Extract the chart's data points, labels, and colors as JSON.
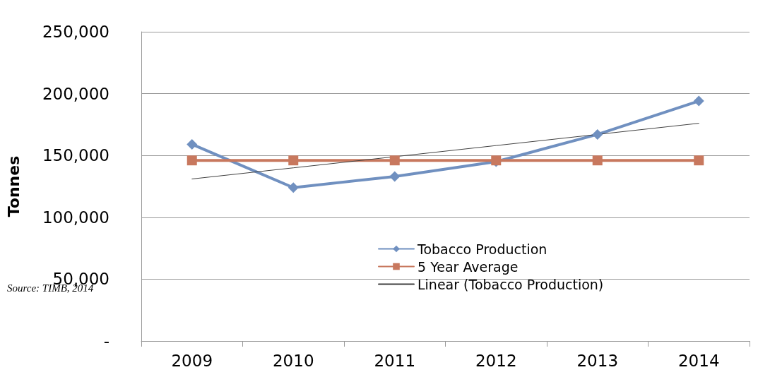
{
  "chart_data": {
    "type": "line",
    "ylabel": "Tonnes",
    "categories": [
      "2009",
      "2010",
      "2011",
      "2012",
      "2013",
      "2014"
    ],
    "series": [
      {
        "name": "Tobacco Production",
        "color": "#7090c0",
        "marker": "diamond",
        "values": [
          159000,
          124000,
          133000,
          145000,
          167000,
          194000
        ]
      },
      {
        "name": "5 Year Average",
        "color": "#c8785e",
        "marker": "square",
        "values": [
          146000,
          146000,
          146000,
          146000,
          146000,
          146000
        ]
      },
      {
        "name": "Linear (Tobacco Production)",
        "color": "#404040",
        "marker": "none",
        "values": [
          131000,
          140000,
          149000,
          158000,
          167000,
          176000
        ]
      }
    ],
    "ylim": [
      0,
      250000
    ],
    "yticks": [
      {
        "value": 0,
        "label": "-"
      },
      {
        "value": 50000,
        "label": "50,000"
      },
      {
        "value": 100000,
        "label": "100,000"
      },
      {
        "value": 150000,
        "label": "150,000"
      },
      {
        "value": 200000,
        "label": "200,000"
      },
      {
        "value": 250000,
        "label": "250,000"
      }
    ],
    "grid": "y",
    "legend": "bottom",
    "annotations": [
      "Source: TIMB, 2014"
    ]
  }
}
